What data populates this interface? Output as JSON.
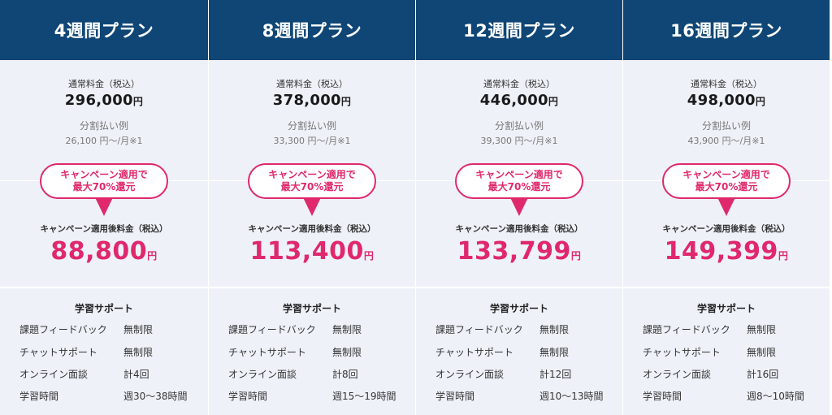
{
  "labels": {
    "regular_price": "通常料金（税込）",
    "installment": "分割払い例",
    "campaign_badge_line1": "キャンペーン適用で",
    "campaign_badge_line2": "最大70%還元",
    "campaign_price": "キャンペーン適用後料金（税込）",
    "support_title": "学習サポート",
    "yen": "円"
  },
  "colors": {
    "header_bg": "#0f4675",
    "panel_bg": "#eef2f8",
    "accent_pink": "#e0286c"
  },
  "plans": [
    {
      "title": "4週間プラン",
      "regular_price": "296,000",
      "installment_example": "26,100 円〜/月※1",
      "campaign_price": "88,800",
      "support": [
        {
          "label": "課題フィードバック",
          "value": "無制限"
        },
        {
          "label": "チャットサポート",
          "value": "無制限"
        },
        {
          "label": "オンライン面談",
          "value": "計4回"
        },
        {
          "label": "学習時間",
          "value": "週30〜38時間"
        }
      ]
    },
    {
      "title": "8週間プラン",
      "regular_price": "378,000",
      "installment_example": "33,300 円〜/月※1",
      "campaign_price": "113,400",
      "support": [
        {
          "label": "課題フィードバック",
          "value": "無制限"
        },
        {
          "label": "チャットサポート",
          "value": "無制限"
        },
        {
          "label": "オンライン面談",
          "value": "計8回"
        },
        {
          "label": "学習時間",
          "value": "週15〜19時間"
        }
      ]
    },
    {
      "title": "12週間プラン",
      "regular_price": "446,000",
      "installment_example": "39,300 円〜/月※1",
      "campaign_price": "133,799",
      "support": [
        {
          "label": "課題フィードバック",
          "value": "無制限"
        },
        {
          "label": "チャットサポート",
          "value": "無制限"
        },
        {
          "label": "オンライン面談",
          "value": "計12回"
        },
        {
          "label": "学習時間",
          "value": "週10〜13時間"
        }
      ]
    },
    {
      "title": "16週間プラン",
      "regular_price": "498,000",
      "installment_example": "43,900 円〜/月※1",
      "campaign_price": "149,399",
      "support": [
        {
          "label": "課題フィードバック",
          "value": "無制限"
        },
        {
          "label": "チャットサポート",
          "value": "無制限"
        },
        {
          "label": "オンライン面談",
          "value": "計16回"
        },
        {
          "label": "学習時間",
          "value": "週8〜10時間"
        }
      ]
    }
  ]
}
